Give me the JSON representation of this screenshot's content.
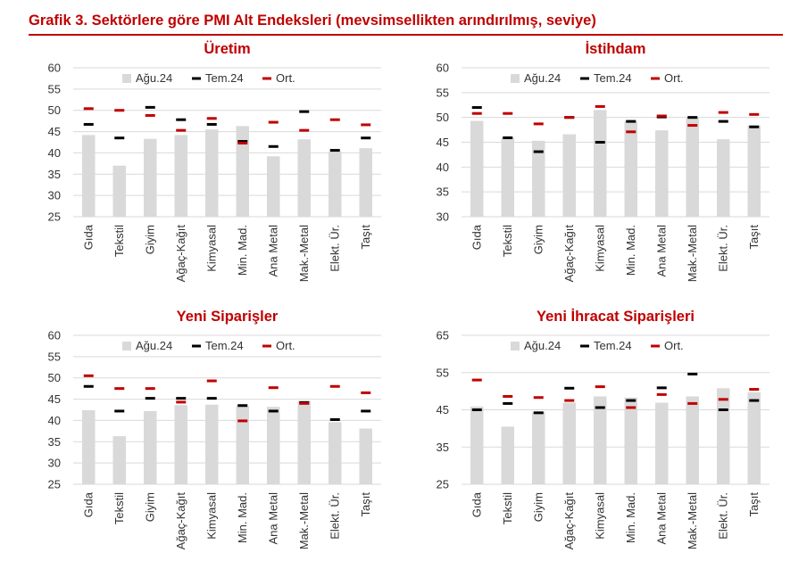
{
  "header": {
    "title": "Grafik 3. Sektörlere göre PMI Alt Endeksleri (mevsimsellikten arındırılmış, seviye)"
  },
  "colors": {
    "bar": "#d9d9d9",
    "tem": "#000000",
    "ort": "#c00000",
    "grid": "#d9d9d9",
    "title": "#c00000"
  },
  "legend": {
    "bar": "Ağu.24",
    "tem": "Tem.24",
    "ort": "Ort."
  },
  "chart_data": [
    {
      "type": "bar",
      "title": "Üretim",
      "categories": [
        "Gıda",
        "Tekstil",
        "Giyim",
        "Ağaç-Kağıt",
        "Kimyasal",
        "Min. Mad.",
        "Ana Metal",
        "Mak.-Metal",
        "Elekt. Ür.",
        "Taşıt"
      ],
      "ylim": [
        25,
        60
      ],
      "yticks": [
        25,
        30,
        35,
        40,
        45,
        50,
        55,
        60
      ],
      "series": [
        {
          "name": "Ağu.24",
          "values": [
            44.2,
            37.0,
            43.3,
            44.2,
            45.5,
            46.3,
            39.2,
            43.2,
            40.3,
            41.1
          ]
        },
        {
          "name": "Tem.24",
          "values": [
            46.7,
            43.5,
            50.7,
            47.8,
            46.7,
            42.7,
            41.5,
            49.7,
            40.6,
            43.5
          ]
        },
        {
          "name": "Ort.",
          "values": [
            50.4,
            50.0,
            48.8,
            45.3,
            48.1,
            42.3,
            47.2,
            45.3,
            47.8,
            46.6
          ]
        }
      ]
    },
    {
      "type": "bar",
      "title": "İstihdam",
      "categories": [
        "Gıda",
        "Tekstil",
        "Giyim",
        "Ağaç-Kağıt",
        "Kimyasal",
        "Min. Mad.",
        "Ana Metal",
        "Mak.-Metal",
        "Elekt. Ür.",
        "Taşıt"
      ],
      "ylim": [
        30,
        60
      ],
      "yticks": [
        30,
        35,
        40,
        45,
        50,
        55,
        60
      ],
      "series": [
        {
          "name": "Ağu.24",
          "values": [
            49.3,
            45.9,
            45.3,
            46.6,
            51.5,
            49.3,
            47.4,
            49.9,
            45.6,
            48.4
          ]
        },
        {
          "name": "Tem.24",
          "values": [
            52.0,
            45.9,
            43.1,
            50.0,
            45.0,
            49.2,
            50.1,
            50.0,
            49.2,
            48.1
          ]
        },
        {
          "name": "Ort.",
          "values": [
            50.8,
            50.8,
            48.7,
            50.0,
            52.2,
            47.1,
            50.3,
            48.4,
            51.0,
            50.6
          ]
        }
      ]
    },
    {
      "type": "bar",
      "title": "Yeni Siparişler",
      "categories": [
        "Gıda",
        "Tekstil",
        "Giyim",
        "Ağaç-Kağıt",
        "Kimyasal",
        "Min. Mad.",
        "Ana Metal",
        "Mak.-Metal",
        "Elekt. Ür.",
        "Taşıt"
      ],
      "ylim": [
        25,
        60
      ],
      "yticks": [
        25,
        30,
        35,
        40,
        45,
        50,
        55,
        60
      ],
      "series": [
        {
          "name": "Ağu.24",
          "values": [
            42.4,
            36.3,
            42.2,
            43.6,
            43.7,
            43.4,
            43.2,
            44.6,
            39.6,
            38.1
          ]
        },
        {
          "name": "Tem.24",
          "values": [
            48.0,
            42.2,
            45.2,
            45.2,
            45.2,
            43.5,
            42.2,
            44.2,
            40.2,
            42.2
          ]
        },
        {
          "name": "Ort.",
          "values": [
            50.5,
            47.5,
            47.5,
            44.3,
            49.3,
            39.9,
            47.7,
            44.0,
            48.0,
            46.5
          ]
        }
      ]
    },
    {
      "type": "bar",
      "title": "Yeni İhracat Siparişleri",
      "categories": [
        "Gıda",
        "Tekstil",
        "Giyim",
        "Ağaç-Kağıt",
        "Kimyasal",
        "Min. Mad.",
        "Ana Metal",
        "Mak.-Metal",
        "Elekt. Ür.",
        "Taşıt"
      ],
      "ylim": [
        25,
        65
      ],
      "yticks": [
        25,
        35,
        45,
        55,
        65
      ],
      "series": [
        {
          "name": "Ağu.24",
          "values": [
            45.9,
            40.5,
            44.5,
            46.9,
            48.6,
            48.3,
            46.9,
            48.6,
            50.8,
            49.7
          ]
        },
        {
          "name": "Tem.24",
          "values": [
            45.0,
            46.7,
            44.2,
            50.8,
            45.6,
            47.5,
            50.9,
            54.6,
            45.0,
            47.5
          ]
        },
        {
          "name": "Ort.",
          "values": [
            53.0,
            48.6,
            48.3,
            47.5,
            51.2,
            45.6,
            49.1,
            46.7,
            47.8,
            50.5
          ]
        }
      ]
    }
  ]
}
